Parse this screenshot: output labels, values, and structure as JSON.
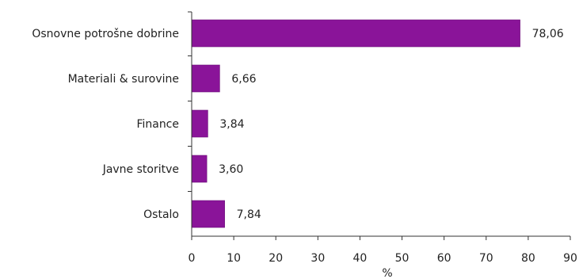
{
  "chart_data": {
    "type": "bar",
    "orientation": "horizontal",
    "categories": [
      "Osnovne potrošne dobrine",
      "Materiali & surovine",
      "Finance",
      "Javne storitve",
      "Ostalo"
    ],
    "values": [
      78.06,
      6.66,
      3.84,
      3.6,
      7.84
    ],
    "value_labels": [
      "78,06",
      "6,66",
      "3,84",
      "3,60",
      "7,84"
    ],
    "xlabel": "%",
    "xlim": [
      0,
      90
    ],
    "xticks": [
      0,
      10,
      20,
      30,
      40,
      50,
      60,
      70,
      80,
      90
    ],
    "grid": false,
    "colors": {
      "bar": "#8a1499",
      "bar_edge": "#6a0f78"
    }
  }
}
